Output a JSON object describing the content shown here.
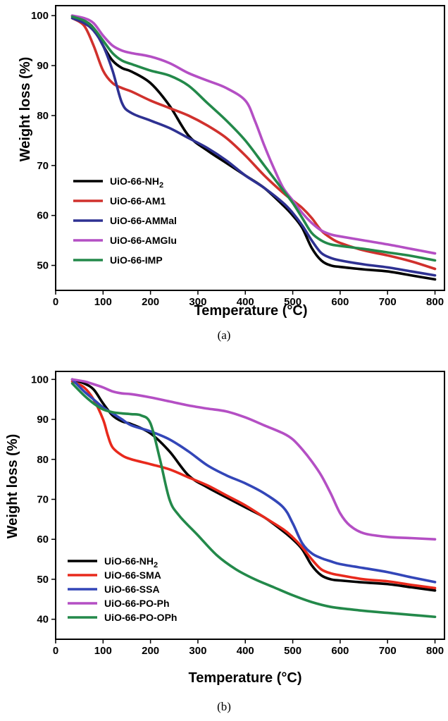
{
  "chart_data": [
    {
      "type": "line",
      "caption": "(a)",
      "xlabel": "Temperature (°C)",
      "ylabel": "Weight loss (%)",
      "xlim": [
        0,
        820
      ],
      "ylim": [
        45,
        102
      ],
      "xticks": [
        "0",
        "100",
        "200",
        "300",
        "400",
        "500",
        "600",
        "700",
        "800"
      ],
      "yticks": [
        "50",
        "60",
        "70",
        "80",
        "90",
        "100"
      ],
      "legend_position": "bottom-left",
      "series": [
        {
          "name": "UiO-66-NH2",
          "color": "#000000",
          "x": [
            35,
            60,
            80,
            100,
            120,
            140,
            160,
            200,
            240,
            280,
            320,
            360,
            400,
            440,
            480,
            500,
            520,
            540,
            560,
            580,
            600,
            650,
            700,
            750,
            800
          ],
          "y": [
            100,
            99,
            97.5,
            94,
            91,
            89.5,
            88.8,
            86.5,
            82,
            76,
            73,
            70.5,
            68,
            65.5,
            62,
            60,
            57.5,
            53.5,
            51,
            50,
            49.7,
            49.2,
            48.8,
            48,
            47.2
          ]
        },
        {
          "name": "UiO-66-AM1",
          "color": "#d0312d",
          "x": [
            35,
            60,
            80,
            100,
            120,
            140,
            160,
            200,
            240,
            280,
            320,
            360,
            400,
            440,
            480,
            500,
            520,
            540,
            560,
            580,
            600,
            650,
            700,
            750,
            800
          ],
          "y": [
            99.5,
            98,
            94,
            89,
            86.5,
            85.5,
            84.8,
            83,
            81.5,
            80,
            78,
            75.5,
            72,
            68,
            64.5,
            63,
            61.5,
            59.5,
            57,
            55.5,
            54.5,
            53,
            52,
            50.8,
            49.3
          ]
        },
        {
          "name": "UiO-66-AMMal",
          "color": "#2e3192",
          "x": [
            35,
            60,
            80,
            100,
            120,
            140,
            160,
            200,
            240,
            280,
            320,
            360,
            400,
            440,
            480,
            500,
            520,
            540,
            560,
            580,
            600,
            650,
            700,
            750,
            800
          ],
          "y": [
            99.5,
            98.5,
            97,
            94,
            89,
            82.5,
            80.5,
            79,
            77.5,
            75.5,
            73.5,
            71,
            68,
            65.5,
            62.5,
            60.5,
            58,
            55,
            52.5,
            51.5,
            51,
            50.2,
            49.6,
            48.8,
            48
          ]
        },
        {
          "name": "UiO-66-AMGlu",
          "color": "#b44fc4",
          "x": [
            35,
            60,
            80,
            100,
            120,
            140,
            160,
            200,
            240,
            280,
            320,
            360,
            400,
            420,
            440,
            460,
            480,
            500,
            520,
            540,
            560,
            580,
            600,
            650,
            700,
            750,
            800
          ],
          "y": [
            100,
            99.5,
            98.5,
            96,
            94,
            93,
            92.5,
            91.8,
            90.5,
            88.5,
            87,
            85.5,
            83,
            79,
            74,
            69.5,
            65.5,
            63,
            60.5,
            58.5,
            57,
            56.2,
            55.8,
            55,
            54.2,
            53.3,
            52.4
          ]
        },
        {
          "name": "UiO-66-IMP",
          "color": "#23894a",
          "x": [
            35,
            60,
            80,
            100,
            120,
            140,
            160,
            200,
            240,
            280,
            320,
            360,
            400,
            440,
            480,
            500,
            520,
            540,
            560,
            580,
            600,
            650,
            700,
            750,
            800
          ],
          "y": [
            99.8,
            99,
            97.5,
            95,
            92.5,
            91,
            90.3,
            89,
            88,
            86,
            82.5,
            79,
            75,
            70,
            65,
            62.5,
            59.5,
            56.5,
            55,
            54.2,
            53.9,
            53.3,
            52.6,
            51.9,
            51
          ]
        }
      ]
    },
    {
      "type": "line",
      "caption": "(b)",
      "xlabel": "Temperature (°C)",
      "ylabel": "Weight loss (%)",
      "xlim": [
        0,
        820
      ],
      "ylim": [
        35,
        102
      ],
      "xticks": [
        "0",
        "100",
        "200",
        "300",
        "400",
        "500",
        "600",
        "700",
        "800"
      ],
      "yticks": [
        "40",
        "50",
        "60",
        "70",
        "80",
        "90",
        "100"
      ],
      "legend_position": "bottom-left",
      "series": [
        {
          "name": "UiO-66-NH2",
          "color": "#000000",
          "x": [
            35,
            60,
            80,
            100,
            120,
            140,
            160,
            200,
            240,
            280,
            320,
            360,
            400,
            440,
            480,
            500,
            520,
            540,
            560,
            580,
            600,
            650,
            700,
            750,
            800
          ],
          "y": [
            100,
            99,
            97.5,
            94,
            91,
            89.5,
            88.8,
            86.5,
            82,
            76,
            73,
            70.5,
            68,
            65.5,
            62,
            60,
            57.5,
            53.5,
            51,
            50,
            49.7,
            49.2,
            48.8,
            48,
            47.2
          ]
        },
        {
          "name": "UiO-66-SMA",
          "color": "#e8291c",
          "x": [
            35,
            60,
            80,
            100,
            110,
            120,
            140,
            160,
            200,
            240,
            280,
            320,
            360,
            400,
            440,
            480,
            500,
            520,
            540,
            560,
            580,
            600,
            650,
            700,
            750,
            800
          ],
          "y": [
            99.5,
            98,
            95,
            90,
            86,
            83,
            81,
            80,
            78.8,
            77.5,
            75.5,
            73.5,
            71,
            68.5,
            65.5,
            62.5,
            60.5,
            58,
            55,
            52.5,
            51.5,
            51,
            50,
            49.5,
            48.6,
            47.8
          ]
        },
        {
          "name": "UiO-66-SSA",
          "color": "#3346b8",
          "x": [
            35,
            60,
            80,
            100,
            120,
            140,
            160,
            200,
            240,
            280,
            320,
            360,
            400,
            440,
            480,
            500,
            520,
            540,
            560,
            580,
            600,
            650,
            700,
            750,
            800
          ],
          "y": [
            100,
            97,
            95,
            93,
            91.5,
            90,
            88.5,
            87,
            85,
            82,
            78.5,
            76,
            74,
            71.5,
            68,
            64,
            59,
            56.5,
            55.3,
            54.5,
            53.8,
            52.8,
            51.8,
            50.5,
            49.3
          ]
        },
        {
          "name": "UiO-66-PO-Ph",
          "color": "#b44fc4",
          "x": [
            35,
            60,
            80,
            100,
            120,
            140,
            160,
            200,
            240,
            280,
            320,
            360,
            400,
            440,
            480,
            500,
            520,
            540,
            560,
            580,
            600,
            620,
            650,
            700,
            750,
            800
          ],
          "y": [
            100,
            99.5,
            98.8,
            98,
            97,
            96.5,
            96.3,
            95.5,
            94.5,
            93.5,
            92.7,
            92,
            90.5,
            88.5,
            86.5,
            85,
            82.5,
            79.5,
            76,
            71.5,
            66.5,
            63.5,
            61.5,
            60.6,
            60.3,
            60
          ]
        },
        {
          "name": "UiO-66-PO-OPh",
          "color": "#23894a",
          "x": [
            35,
            60,
            80,
            100,
            120,
            140,
            160,
            180,
            200,
            220,
            240,
            260,
            300,
            340,
            380,
            420,
            460,
            500,
            540,
            580,
            620,
            660,
            700,
            750,
            800
          ],
          "y": [
            99,
            96,
            94,
            92.5,
            91.8,
            91.5,
            91.3,
            91,
            89,
            80,
            70,
            66,
            61,
            56,
            52.5,
            50,
            48,
            46,
            44.3,
            43.1,
            42.5,
            42,
            41.6,
            41.1,
            40.6
          ]
        }
      ]
    }
  ]
}
